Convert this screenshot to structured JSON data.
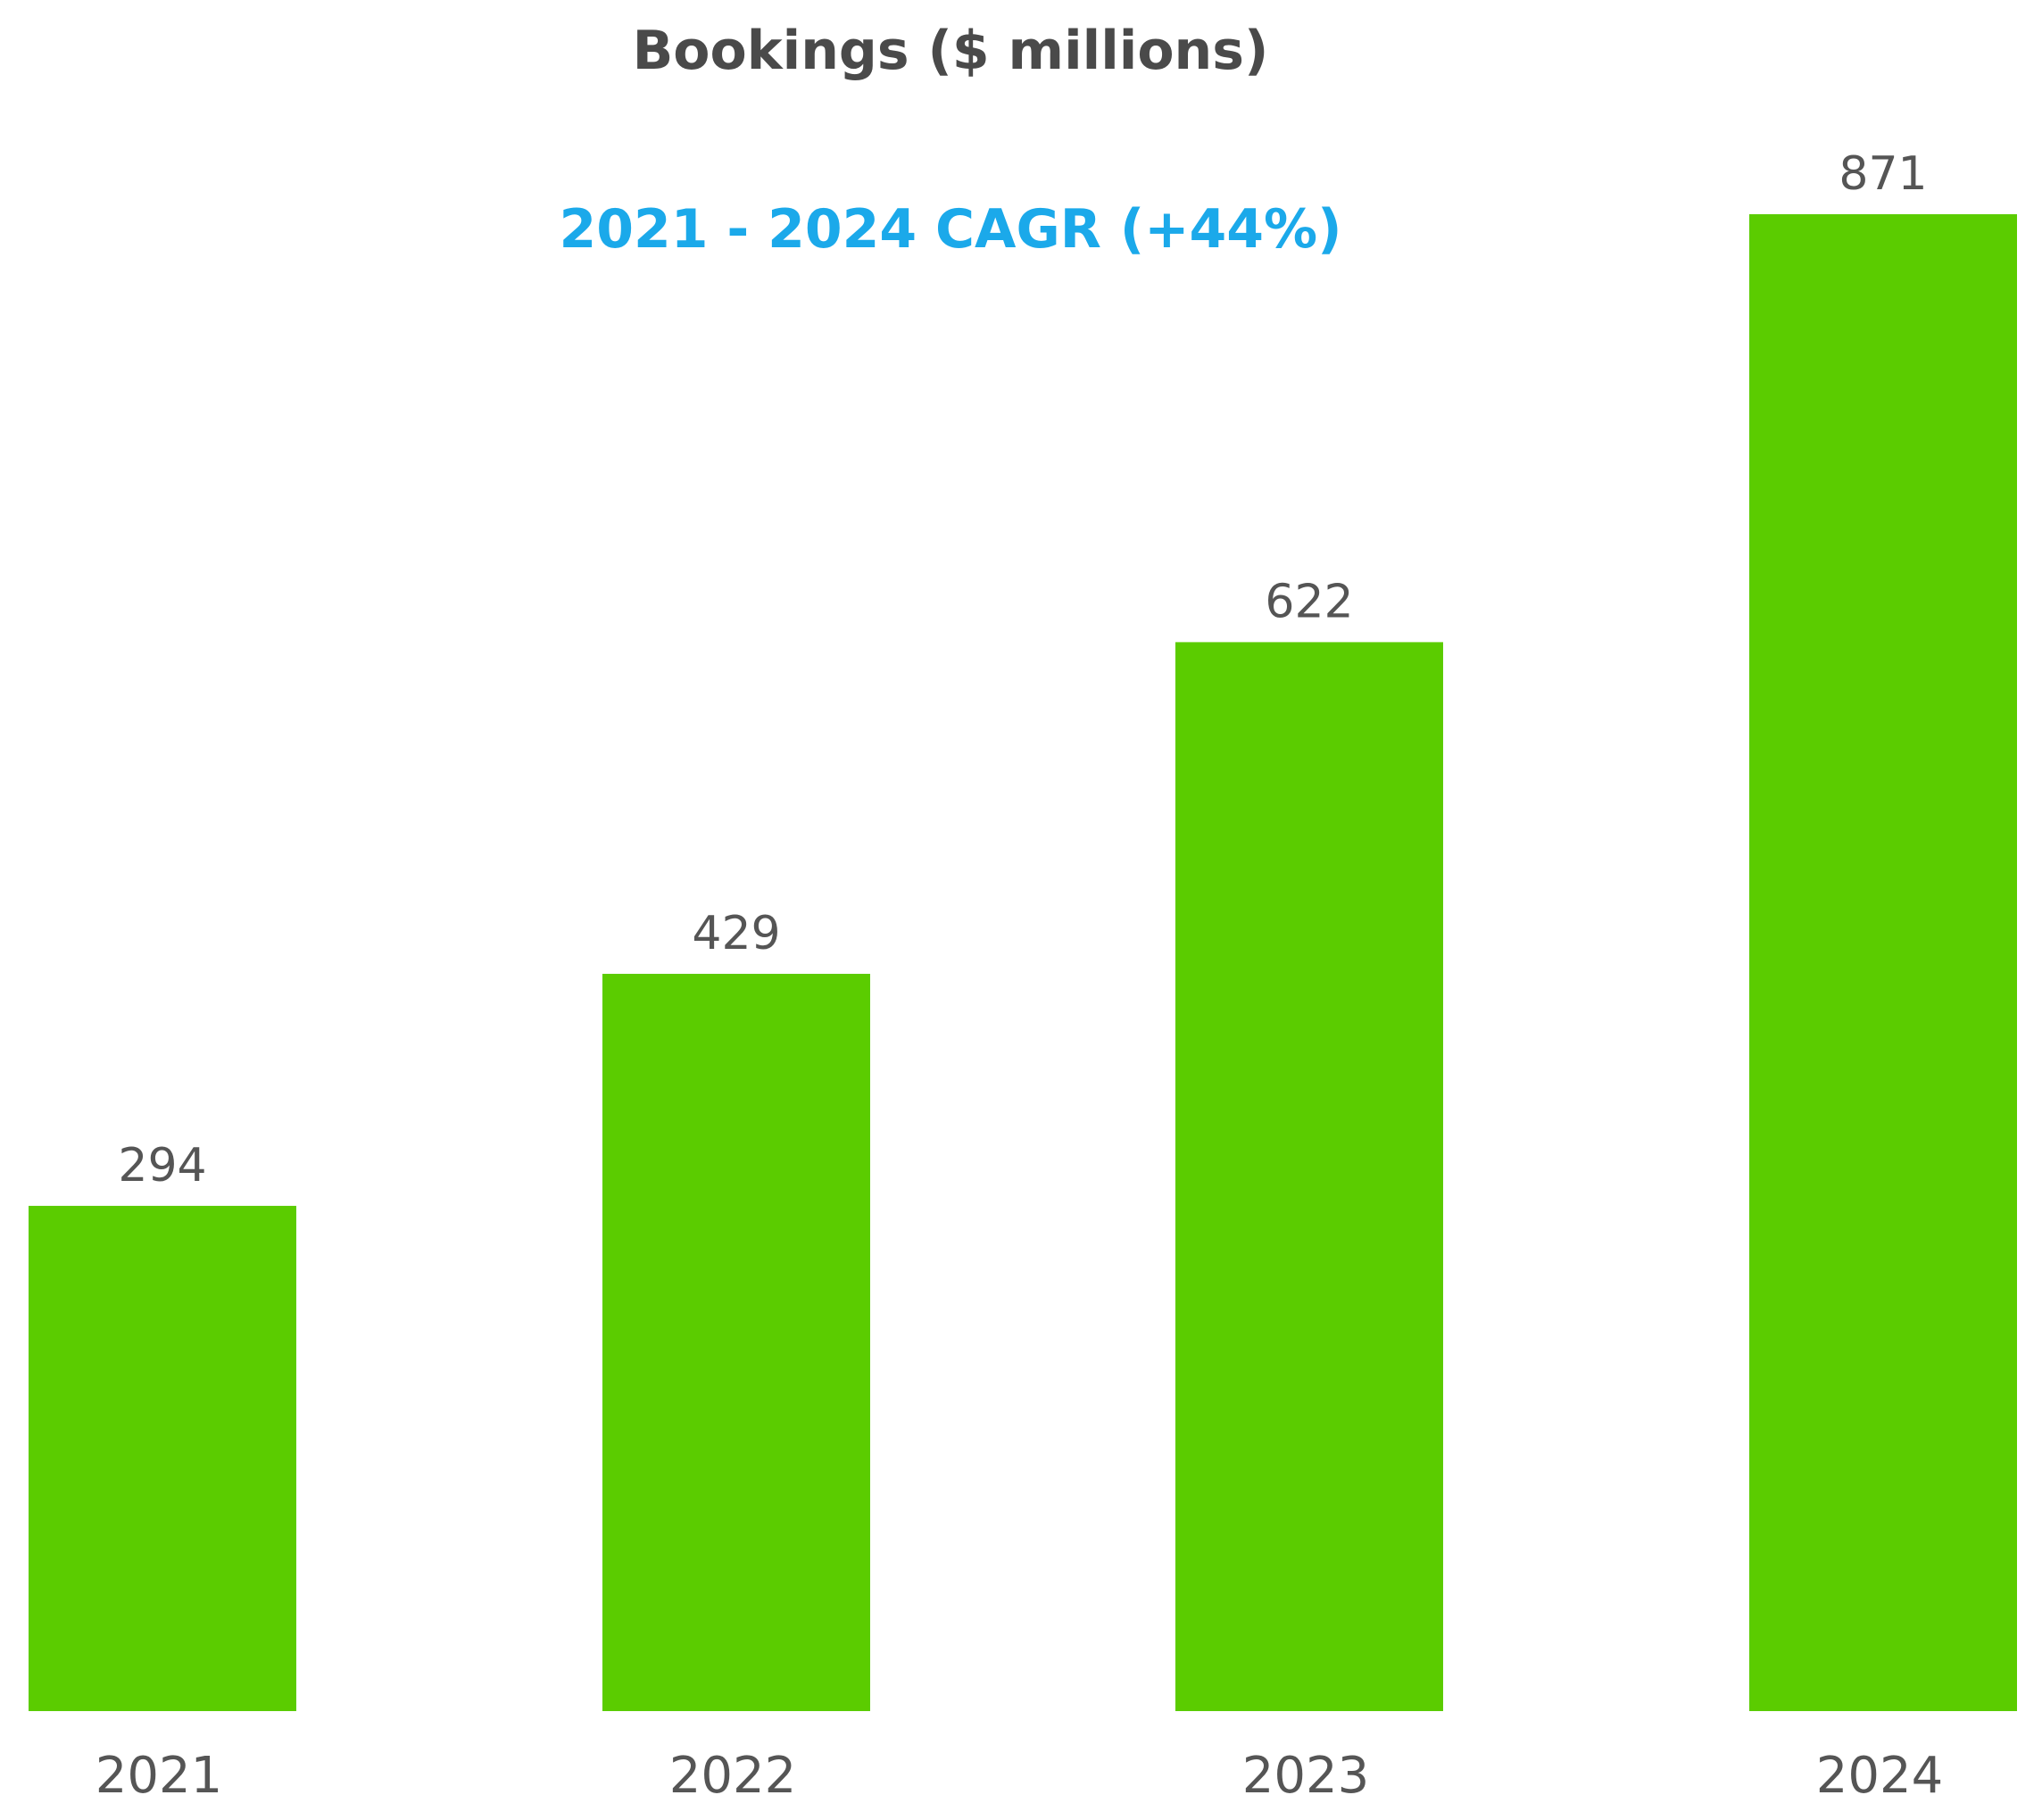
{
  "chart_data": {
    "type": "bar",
    "title": "Bookings ($ millions)",
    "subtitle": "2021 - 2024 CAGR (+44%)",
    "categories": [
      "2021",
      "2022",
      "2023",
      "2024"
    ],
    "values": [
      294,
      429,
      622,
      871
    ],
    "data_labels": [
      "294",
      "429",
      "622",
      "871"
    ],
    "xlabel": "",
    "ylabel": "",
    "ylim": [
      0,
      871
    ],
    "grid": false,
    "legend": "none"
  },
  "colors": {
    "bar": "#5bcc00",
    "subtitle": "#1ba9ea",
    "text": "#555555",
    "title": "#4a4a4a"
  }
}
